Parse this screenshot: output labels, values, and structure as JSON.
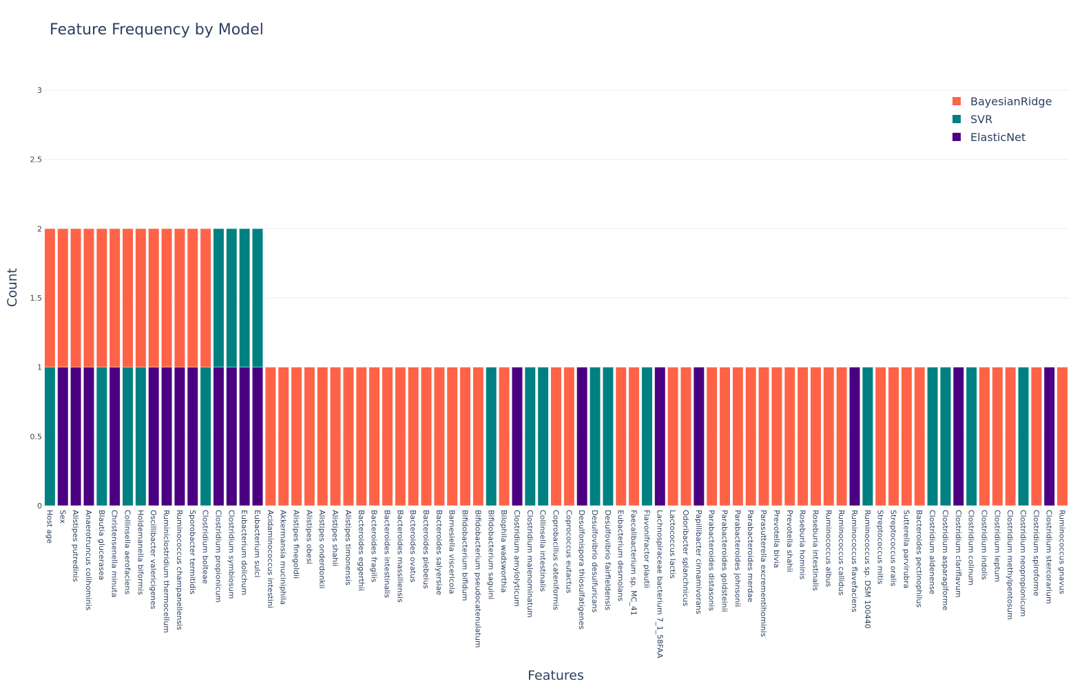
{
  "chart_data": {
    "type": "bar",
    "stacked": true,
    "title": "Feature Frequency by Model",
    "xlabel": "Features",
    "ylabel": "Count",
    "ylim": [
      0,
      3
    ],
    "yticks": [
      "0",
      "0.5",
      "1",
      "1.5",
      "2",
      "2.5",
      "3"
    ],
    "grid": true,
    "legend_position": "top-right",
    "categories": [
      "Host age",
      "Sex",
      "Alistipes putredinis",
      "Anaerotruncus colihominis",
      "Blautia glucerasea",
      "Christensenella minuta",
      "Collinsella aerofaciens",
      "Holdemanella biformis",
      "Oscillibacter valericigenes",
      "Ruminiclostridium thermocellum",
      "Ruminococcus champanellensis",
      "Sporobacter termitidis",
      "Clostridium bolteae",
      "Clostridium propionicum",
      "Clostridium symbiosum",
      "Eubacterium dolichum",
      "Eubacterium sulci",
      "Acidaminococcus intestini",
      "Akkermansia muciniphila",
      "Alistipes finegoldii",
      "Alistipes obesi",
      "Alistipes onderdonkii",
      "Alistipes shahii",
      "Alistipes timonensis",
      "Bacteroides eggerthii",
      "Bacteroides fragilis",
      "Bacteroides intestinalis",
      "Bacteroides massiliensis",
      "Bacteroides ovatus",
      "Bacteroides plebeius",
      "Bacteroides salyersiae",
      "Barnesiella viscericola",
      "Bifidobacterium bifidum",
      "Bifidobacterium pseudocatenulatum",
      "Bifidobacterium saguini",
      "Bilophila wadsworthia",
      "Clostridium amylolyticum",
      "Clostridium malenominatum",
      "Collinsella intestinalis",
      "Coprobacillus cateniformis",
      "Coprococcus eutactus",
      "Desulfonispora thiosulfatigenes",
      "Desulfovibrio desulfuricans",
      "Desulfovibrio fairfieldensis",
      "Eubacterium desmolans",
      "Faecalibacterium sp. MC_41",
      "Flavonifractor plautii",
      "Lachnospiraceae bacterium 7_1_58FAA",
      "Lactococcus lactis",
      "Odoribacter splanchnicus",
      "Papillibacter cinnamivorans",
      "Parabacteroides distasonis",
      "Parabacteroides goldsteinii",
      "Parabacteroides johnsonii",
      "Parabacteroides merdae",
      "Parasutterella excrementihominis",
      "Prevotella bivia",
      "Prevotella shahii",
      "Roseburia hominis",
      "Roseburia intestinalis",
      "Ruminococcus albus",
      "Ruminococcus callidus",
      "Ruminococcus flavefaciens",
      "Ruminococcus sp. DSM 100440",
      "Streptococcus mitis",
      "Streptococcus oralis",
      "Sutterella parvirubra",
      "Bacteroides pectinophilus",
      "Clostridium aldenense",
      "Clostridium asparagiforme",
      "Clostridium clariflavum",
      "Clostridium colinum",
      "Clostridium indolis",
      "Clostridium leptum",
      "Clostridium methylpentosum",
      "Clostridium neopropionicum",
      "Clostridium spiroforme",
      "Clostridium stercorarium",
      "Ruminococcus gnavus"
    ],
    "series": [
      {
        "name": "ElasticNet",
        "color": "#4b0082",
        "values": [
          0,
          1,
          1,
          1,
          0,
          1,
          0,
          0,
          1,
          1,
          1,
          1,
          0,
          1,
          1,
          1,
          1,
          0,
          0,
          0,
          0,
          0,
          0,
          0,
          0,
          0,
          0,
          0,
          0,
          0,
          0,
          0,
          0,
          0,
          0,
          0,
          1,
          0,
          0,
          0,
          0,
          1,
          0,
          0,
          0,
          0,
          0,
          1,
          0,
          0,
          1,
          0,
          0,
          0,
          0,
          0,
          0,
          0,
          0,
          0,
          0,
          0,
          1,
          0,
          0,
          0,
          0,
          0,
          0,
          0,
          1,
          0,
          0,
          0,
          0,
          0,
          0,
          1,
          0
        ]
      },
      {
        "name": "SVR",
        "color": "#008080",
        "values": [
          1,
          0,
          0,
          0,
          1,
          0,
          1,
          1,
          0,
          0,
          0,
          0,
          1,
          1,
          1,
          1,
          1,
          0,
          0,
          0,
          0,
          0,
          0,
          0,
          0,
          0,
          0,
          0,
          0,
          0,
          0,
          0,
          0,
          0,
          1,
          0,
          0,
          1,
          1,
          0,
          0,
          0,
          1,
          1,
          0,
          0,
          1,
          0,
          0,
          0,
          0,
          0,
          0,
          0,
          0,
          0,
          0,
          0,
          0,
          0,
          0,
          0,
          0,
          1,
          0,
          0,
          0,
          0,
          1,
          1,
          0,
          1,
          0,
          0,
          0,
          1,
          0,
          0,
          0
        ]
      },
      {
        "name": "BayesianRidge",
        "color": "#ff6347",
        "values": [
          1,
          1,
          1,
          1,
          1,
          1,
          1,
          1,
          1,
          1,
          1,
          1,
          1,
          0,
          0,
          0,
          0,
          1,
          1,
          1,
          1,
          1,
          1,
          1,
          1,
          1,
          1,
          1,
          1,
          1,
          1,
          1,
          1,
          1,
          0,
          1,
          0,
          0,
          0,
          1,
          1,
          0,
          0,
          0,
          1,
          1,
          0,
          0,
          1,
          1,
          0,
          1,
          1,
          1,
          1,
          1,
          1,
          1,
          1,
          1,
          1,
          1,
          0,
          0,
          1,
          1,
          1,
          1,
          0,
          0,
          0,
          0,
          1,
          1,
          1,
          0,
          1,
          0,
          1
        ]
      }
    ],
    "legend_order": [
      "BayesianRidge",
      "SVR",
      "ElasticNet"
    ]
  }
}
